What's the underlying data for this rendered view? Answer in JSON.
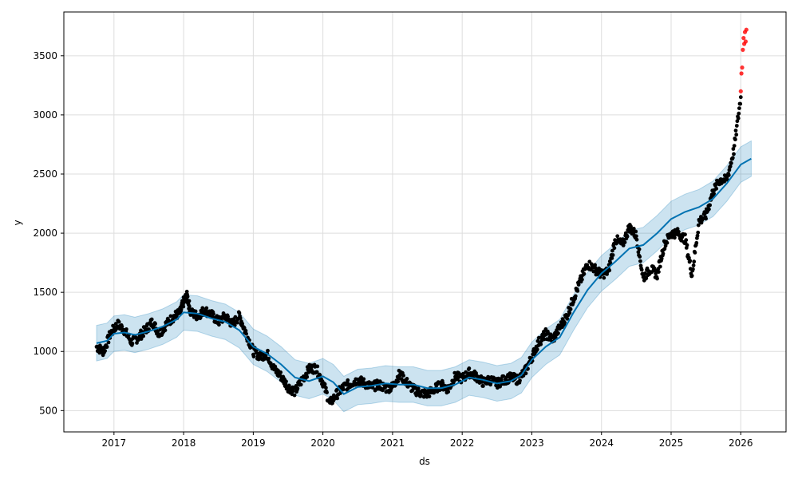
{
  "chart_data": {
    "type": "line",
    "xlabel": "ds",
    "ylabel": "y",
    "x_range": [
      2016.28,
      2026.65
    ],
    "y_range": [
      320,
      3870
    ],
    "x_ticks": [
      {
        "value": 2017,
        "label": "2017"
      },
      {
        "value": 2018,
        "label": "2018"
      },
      {
        "value": 2019,
        "label": "2019"
      },
      {
        "value": 2020,
        "label": "2020"
      },
      {
        "value": 2021,
        "label": "2021"
      },
      {
        "value": 2022,
        "label": "2022"
      },
      {
        "value": 2023,
        "label": "2023"
      },
      {
        "value": 2024,
        "label": "2024"
      },
      {
        "value": 2025,
        "label": "2025"
      },
      {
        "value": 2026,
        "label": "2026"
      }
    ],
    "y_ticks": [
      {
        "value": 500,
        "label": "500"
      },
      {
        "value": 1000,
        "label": "1000"
      },
      {
        "value": 1500,
        "label": "1500"
      },
      {
        "value": 2000,
        "label": "2000"
      },
      {
        "value": 2500,
        "label": "2500"
      },
      {
        "value": 3000,
        "label": "3000"
      },
      {
        "value": 3500,
        "label": "3500"
      }
    ],
    "grid": true,
    "colors": {
      "forecast_line": "#0072B2",
      "interval_band": "#0072B2",
      "observed_points": "#000000",
      "anomaly_points": "#ff0000"
    },
    "forecast": {
      "x": [
        2016.75,
        2016.9,
        2017.0,
        2017.15,
        2017.3,
        2017.5,
        2017.7,
        2017.9,
        2018.0,
        2018.2,
        2018.4,
        2018.6,
        2018.8,
        2019.0,
        2019.2,
        2019.4,
        2019.6,
        2019.8,
        2020.0,
        2020.15,
        2020.3,
        2020.5,
        2020.7,
        2020.9,
        2021.1,
        2021.3,
        2021.5,
        2021.7,
        2021.9,
        2022.1,
        2022.3,
        2022.5,
        2022.7,
        2022.85,
        2023.0,
        2023.2,
        2023.4,
        2023.6,
        2023.8,
        2024.0,
        2024.2,
        2024.4,
        2024.6,
        2024.8,
        2025.0,
        2025.2,
        2025.4,
        2025.6,
        2025.8,
        2026.0,
        2026.15
      ],
      "yhat": [
        1070,
        1090,
        1150,
        1160,
        1140,
        1170,
        1210,
        1270,
        1330,
        1320,
        1280,
        1250,
        1180,
        1040,
        980,
        890,
        780,
        750,
        790,
        740,
        640,
        700,
        710,
        730,
        720,
        720,
        690,
        690,
        720,
        780,
        760,
        730,
        750,
        800,
        930,
        1040,
        1120,
        1330,
        1520,
        1660,
        1760,
        1870,
        1900,
        2000,
        2120,
        2180,
        2220,
        2290,
        2420,
        2580,
        2630
      ],
      "lower": [
        920,
        940,
        1000,
        1010,
        990,
        1020,
        1060,
        1120,
        1180,
        1170,
        1130,
        1100,
        1030,
        890,
        830,
        740,
        630,
        600,
        640,
        590,
        490,
        550,
        560,
        580,
        570,
        570,
        540,
        540,
        570,
        630,
        610,
        580,
        600,
        650,
        780,
        890,
        970,
        1180,
        1370,
        1510,
        1610,
        1720,
        1750,
        1850,
        1970,
        2030,
        2070,
        2140,
        2270,
        2430,
        2480
      ],
      "upper": [
        1220,
        1240,
        1300,
        1310,
        1290,
        1320,
        1360,
        1420,
        1480,
        1470,
        1430,
        1400,
        1330,
        1190,
        1130,
        1040,
        930,
        900,
        940,
        890,
        790,
        850,
        860,
        880,
        870,
        870,
        840,
        840,
        870,
        930,
        910,
        880,
        900,
        950,
        1080,
        1190,
        1270,
        1480,
        1670,
        1810,
        1910,
        2020,
        2050,
        2150,
        2270,
        2330,
        2370,
        2440,
        2570,
        2730,
        2780
      ]
    },
    "observed": {
      "name": "observed",
      "x": [
        2016.75,
        2016.85,
        2016.95,
        2017.05,
        2017.15,
        2017.25,
        2017.35,
        2017.45,
        2017.55,
        2017.65,
        2017.75,
        2017.85,
        2017.95,
        2018.0,
        2018.05,
        2018.1,
        2018.2,
        2018.3,
        2018.4,
        2018.5,
        2018.6,
        2018.7,
        2018.8,
        2018.9,
        2019.0,
        2019.1,
        2019.2,
        2019.3,
        2019.4,
        2019.5,
        2019.6,
        2019.7,
        2019.8,
        2019.9,
        2020.0,
        2020.1,
        2020.2,
        2020.3,
        2020.4,
        2020.5,
        2020.6,
        2020.7,
        2020.8,
        2020.9,
        2021.0,
        2021.1,
        2021.2,
        2021.3,
        2021.4,
        2021.5,
        2021.6,
        2021.7,
        2021.8,
        2021.9,
        2022.0,
        2022.1,
        2022.2,
        2022.3,
        2022.4,
        2022.5,
        2022.6,
        2022.7,
        2022.8,
        2022.9,
        2023.0,
        2023.1,
        2023.2,
        2023.3,
        2023.4,
        2023.5,
        2023.6,
        2023.7,
        2023.8,
        2023.9,
        2024.0,
        2024.1,
        2024.2,
        2024.3,
        2024.4,
        2024.5,
        2024.6,
        2024.7,
        2024.8,
        2024.9,
        2025.0,
        2025.1,
        2025.2,
        2025.3,
        2025.4,
        2025.5,
        2025.6,
        2025.7,
        2025.8,
        2025.9,
        2026.0
      ],
      "y": [
        1040,
        1000,
        1150,
        1230,
        1180,
        1080,
        1120,
        1180,
        1250,
        1150,
        1230,
        1290,
        1330,
        1420,
        1470,
        1330,
        1300,
        1350,
        1310,
        1250,
        1300,
        1230,
        1300,
        1150,
        1000,
        960,
        980,
        850,
        790,
        700,
        660,
        760,
        850,
        860,
        740,
        560,
        640,
        700,
        730,
        760,
        730,
        700,
        720,
        690,
        700,
        810,
        740,
        680,
        650,
        640,
        680,
        720,
        680,
        790,
        770,
        820,
        790,
        740,
        760,
        730,
        760,
        780,
        760,
        830,
        950,
        1080,
        1150,
        1100,
        1200,
        1300,
        1450,
        1600,
        1740,
        1700,
        1650,
        1680,
        1950,
        1900,
        2050,
        1980,
        1620,
        1700,
        1650,
        1900,
        2000,
        2000,
        1950,
        1650,
        2100,
        2150,
        2350,
        2450,
        2450,
        2700,
        3150
      ],
      "spread": 40
    },
    "anomalies": {
      "name": "anomalies",
      "x": [
        2026.0,
        2026.01,
        2026.02,
        2026.03,
        2026.04,
        2026.05,
        2026.06,
        2026.07,
        2026.08
      ],
      "y": [
        3200,
        3350,
        3400,
        3550,
        3650,
        3600,
        3700,
        3620,
        3720
      ]
    }
  }
}
